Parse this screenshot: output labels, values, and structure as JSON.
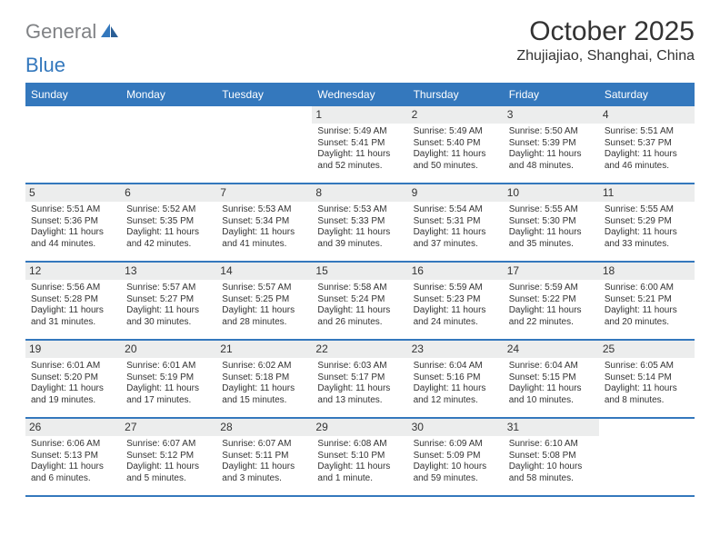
{
  "brand": {
    "part1": "General",
    "part2": "Blue"
  },
  "title": "October 2025",
  "location": "Zhujiajiao, Shanghai, China",
  "colors": {
    "accent": "#3478bd",
    "gray_text": "#808285",
    "row_header_bg": "#eceded",
    "background": "#ffffff",
    "text": "#333333"
  },
  "day_headers": {
    "fontsize": 12,
    "weight": "normal"
  },
  "cell_text": {
    "fontsize": 10
  },
  "days_of_week": [
    "Sunday",
    "Monday",
    "Tuesday",
    "Wednesday",
    "Thursday",
    "Friday",
    "Saturday"
  ],
  "weeks": [
    [
      {
        "empty": true
      },
      {
        "empty": true
      },
      {
        "empty": true
      },
      {
        "day": "1",
        "sunrise": "Sunrise: 5:49 AM",
        "sunset": "Sunset: 5:41 PM",
        "daylight": "Daylight: 11 hours and 52 minutes."
      },
      {
        "day": "2",
        "sunrise": "Sunrise: 5:49 AM",
        "sunset": "Sunset: 5:40 PM",
        "daylight": "Daylight: 11 hours and 50 minutes."
      },
      {
        "day": "3",
        "sunrise": "Sunrise: 5:50 AM",
        "sunset": "Sunset: 5:39 PM",
        "daylight": "Daylight: 11 hours and 48 minutes."
      },
      {
        "day": "4",
        "sunrise": "Sunrise: 5:51 AM",
        "sunset": "Sunset: 5:37 PM",
        "daylight": "Daylight: 11 hours and 46 minutes."
      }
    ],
    [
      {
        "day": "5",
        "sunrise": "Sunrise: 5:51 AM",
        "sunset": "Sunset: 5:36 PM",
        "daylight": "Daylight: 11 hours and 44 minutes."
      },
      {
        "day": "6",
        "sunrise": "Sunrise: 5:52 AM",
        "sunset": "Sunset: 5:35 PM",
        "daylight": "Daylight: 11 hours and 42 minutes."
      },
      {
        "day": "7",
        "sunrise": "Sunrise: 5:53 AM",
        "sunset": "Sunset: 5:34 PM",
        "daylight": "Daylight: 11 hours and 41 minutes."
      },
      {
        "day": "8",
        "sunrise": "Sunrise: 5:53 AM",
        "sunset": "Sunset: 5:33 PM",
        "daylight": "Daylight: 11 hours and 39 minutes."
      },
      {
        "day": "9",
        "sunrise": "Sunrise: 5:54 AM",
        "sunset": "Sunset: 5:31 PM",
        "daylight": "Daylight: 11 hours and 37 minutes."
      },
      {
        "day": "10",
        "sunrise": "Sunrise: 5:55 AM",
        "sunset": "Sunset: 5:30 PM",
        "daylight": "Daylight: 11 hours and 35 minutes."
      },
      {
        "day": "11",
        "sunrise": "Sunrise: 5:55 AM",
        "sunset": "Sunset: 5:29 PM",
        "daylight": "Daylight: 11 hours and 33 minutes."
      }
    ],
    [
      {
        "day": "12",
        "sunrise": "Sunrise: 5:56 AM",
        "sunset": "Sunset: 5:28 PM",
        "daylight": "Daylight: 11 hours and 31 minutes."
      },
      {
        "day": "13",
        "sunrise": "Sunrise: 5:57 AM",
        "sunset": "Sunset: 5:27 PM",
        "daylight": "Daylight: 11 hours and 30 minutes."
      },
      {
        "day": "14",
        "sunrise": "Sunrise: 5:57 AM",
        "sunset": "Sunset: 5:25 PM",
        "daylight": "Daylight: 11 hours and 28 minutes."
      },
      {
        "day": "15",
        "sunrise": "Sunrise: 5:58 AM",
        "sunset": "Sunset: 5:24 PM",
        "daylight": "Daylight: 11 hours and 26 minutes."
      },
      {
        "day": "16",
        "sunrise": "Sunrise: 5:59 AM",
        "sunset": "Sunset: 5:23 PM",
        "daylight": "Daylight: 11 hours and 24 minutes."
      },
      {
        "day": "17",
        "sunrise": "Sunrise: 5:59 AM",
        "sunset": "Sunset: 5:22 PM",
        "daylight": "Daylight: 11 hours and 22 minutes."
      },
      {
        "day": "18",
        "sunrise": "Sunrise: 6:00 AM",
        "sunset": "Sunset: 5:21 PM",
        "daylight": "Daylight: 11 hours and 20 minutes."
      }
    ],
    [
      {
        "day": "19",
        "sunrise": "Sunrise: 6:01 AM",
        "sunset": "Sunset: 5:20 PM",
        "daylight": "Daylight: 11 hours and 19 minutes."
      },
      {
        "day": "20",
        "sunrise": "Sunrise: 6:01 AM",
        "sunset": "Sunset: 5:19 PM",
        "daylight": "Daylight: 11 hours and 17 minutes."
      },
      {
        "day": "21",
        "sunrise": "Sunrise: 6:02 AM",
        "sunset": "Sunset: 5:18 PM",
        "daylight": "Daylight: 11 hours and 15 minutes."
      },
      {
        "day": "22",
        "sunrise": "Sunrise: 6:03 AM",
        "sunset": "Sunset: 5:17 PM",
        "daylight": "Daylight: 11 hours and 13 minutes."
      },
      {
        "day": "23",
        "sunrise": "Sunrise: 6:04 AM",
        "sunset": "Sunset: 5:16 PM",
        "daylight": "Daylight: 11 hours and 12 minutes."
      },
      {
        "day": "24",
        "sunrise": "Sunrise: 6:04 AM",
        "sunset": "Sunset: 5:15 PM",
        "daylight": "Daylight: 11 hours and 10 minutes."
      },
      {
        "day": "25",
        "sunrise": "Sunrise: 6:05 AM",
        "sunset": "Sunset: 5:14 PM",
        "daylight": "Daylight: 11 hours and 8 minutes."
      }
    ],
    [
      {
        "day": "26",
        "sunrise": "Sunrise: 6:06 AM",
        "sunset": "Sunset: 5:13 PM",
        "daylight": "Daylight: 11 hours and 6 minutes."
      },
      {
        "day": "27",
        "sunrise": "Sunrise: 6:07 AM",
        "sunset": "Sunset: 5:12 PM",
        "daylight": "Daylight: 11 hours and 5 minutes."
      },
      {
        "day": "28",
        "sunrise": "Sunrise: 6:07 AM",
        "sunset": "Sunset: 5:11 PM",
        "daylight": "Daylight: 11 hours and 3 minutes."
      },
      {
        "day": "29",
        "sunrise": "Sunrise: 6:08 AM",
        "sunset": "Sunset: 5:10 PM",
        "daylight": "Daylight: 11 hours and 1 minute."
      },
      {
        "day": "30",
        "sunrise": "Sunrise: 6:09 AM",
        "sunset": "Sunset: 5:09 PM",
        "daylight": "Daylight: 10 hours and 59 minutes."
      },
      {
        "day": "31",
        "sunrise": "Sunrise: 6:10 AM",
        "sunset": "Sunset: 5:08 PM",
        "daylight": "Daylight: 10 hours and 58 minutes."
      },
      {
        "empty": true
      }
    ]
  ]
}
